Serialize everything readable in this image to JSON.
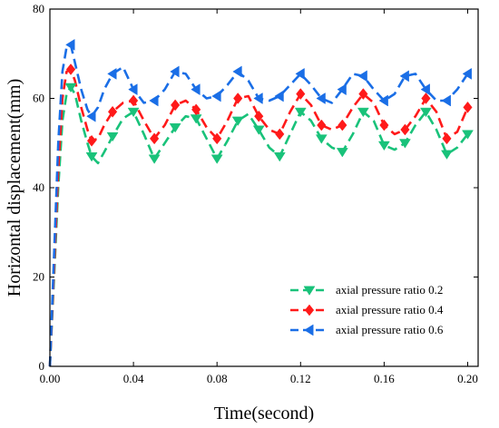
{
  "chart_data": {
    "type": "line",
    "title": "",
    "xlabel": "Time(second)",
    "ylabel": "Horizontal displacement(mm)",
    "xlim": [
      0,
      0.205
    ],
    "ylim": [
      0,
      80
    ],
    "xticks": [
      0.0,
      0.04,
      0.08,
      0.12,
      0.16,
      0.2
    ],
    "xtick_labels": [
      "0.00",
      "0.04",
      "0.08",
      "0.12",
      "0.16",
      "0.20"
    ],
    "yticks": [
      0,
      20,
      40,
      60,
      80
    ],
    "ytick_labels": [
      "0",
      "20",
      "40",
      "60",
      "80"
    ],
    "grid": false,
    "legend_position": "bottom-right",
    "series": [
      {
        "name": "axial pressure ratio 0.2",
        "color": "#19c27a",
        "marker": "triangle-down",
        "line_style": "dashed",
        "x": [
          0,
          0.002,
          0.004,
          0.006,
          0.008,
          0.01,
          0.012,
          0.015,
          0.018,
          0.02,
          0.023,
          0.026,
          0.03,
          0.035,
          0.04,
          0.045,
          0.05,
          0.055,
          0.06,
          0.065,
          0.07,
          0.075,
          0.08,
          0.085,
          0.09,
          0.095,
          0.1,
          0.105,
          0.11,
          0.115,
          0.12,
          0.125,
          0.13,
          0.135,
          0.14,
          0.145,
          0.15,
          0.155,
          0.16,
          0.165,
          0.17,
          0.175,
          0.18,
          0.185,
          0.19,
          0.195,
          0.2
        ],
        "values": [
          0,
          20,
          40,
          55,
          61,
          62.5,
          61,
          55,
          50,
          47,
          45.5,
          48,
          51.5,
          55.5,
          57,
          52,
          46.5,
          50,
          53.5,
          56,
          55.5,
          51,
          46.5,
          50.5,
          55,
          56.5,
          53,
          49,
          47,
          52,
          57,
          55,
          51,
          49,
          48,
          52,
          57,
          55,
          49.5,
          48.5,
          50,
          54,
          57,
          53,
          47.5,
          49,
          52
        ]
      },
      {
        "name": "axial pressure ratio 0.4",
        "color": "#ff1a1a",
        "marker": "diamond",
        "line_style": "dashed",
        "x": [
          0,
          0.002,
          0.004,
          0.006,
          0.008,
          0.01,
          0.012,
          0.015,
          0.018,
          0.02,
          0.023,
          0.026,
          0.03,
          0.035,
          0.04,
          0.045,
          0.05,
          0.055,
          0.06,
          0.065,
          0.07,
          0.075,
          0.08,
          0.085,
          0.09,
          0.095,
          0.1,
          0.105,
          0.11,
          0.115,
          0.12,
          0.125,
          0.13,
          0.135,
          0.14,
          0.145,
          0.15,
          0.155,
          0.16,
          0.165,
          0.17,
          0.175,
          0.18,
          0.185,
          0.19,
          0.195,
          0.2
        ],
        "values": [
          0,
          22,
          44,
          60,
          66,
          66.5,
          64,
          58,
          53,
          50.5,
          51,
          54,
          57,
          59,
          59.5,
          55,
          51,
          54,
          58.5,
          59.5,
          57.5,
          53.5,
          51,
          55,
          60,
          60.5,
          56,
          53,
          52,
          57,
          61,
          58.5,
          54,
          53,
          54,
          58,
          61,
          59,
          54,
          52,
          53,
          56,
          60,
          57,
          51,
          52.5,
          58
        ]
      },
      {
        "name": "axial pressure ratio 0.6",
        "color": "#1a6ee6",
        "marker": "triangle-left",
        "line_style": "dashed",
        "x": [
          0,
          0.002,
          0.004,
          0.006,
          0.008,
          0.01,
          0.012,
          0.015,
          0.018,
          0.02,
          0.023,
          0.026,
          0.03,
          0.035,
          0.04,
          0.045,
          0.05,
          0.055,
          0.06,
          0.065,
          0.07,
          0.075,
          0.08,
          0.085,
          0.09,
          0.095,
          0.1,
          0.105,
          0.11,
          0.115,
          0.12,
          0.125,
          0.13,
          0.135,
          0.14,
          0.145,
          0.15,
          0.155,
          0.16,
          0.165,
          0.17,
          0.175,
          0.18,
          0.185,
          0.19,
          0.195,
          0.2
        ],
        "values": [
          0,
          25,
          50,
          66,
          71.5,
          72,
          68,
          62,
          57.5,
          56,
          58,
          62,
          65.5,
          67,
          62,
          59,
          59.5,
          62,
          66,
          65.5,
          62,
          60,
          60.5,
          63,
          66,
          64,
          60,
          59.5,
          60.5,
          63,
          65.5,
          63,
          60,
          59,
          62,
          65.5,
          65,
          62,
          59.5,
          61,
          65,
          65.5,
          62,
          59.5,
          59.5,
          62,
          65.5
        ]
      }
    ],
    "marker_x": [
      0.01,
      0.02,
      0.03,
      0.04,
      0.05,
      0.06,
      0.07,
      0.08,
      0.09,
      0.1,
      0.11,
      0.12,
      0.13,
      0.14,
      0.15,
      0.16,
      0.17,
      0.18,
      0.19,
      0.2
    ]
  }
}
